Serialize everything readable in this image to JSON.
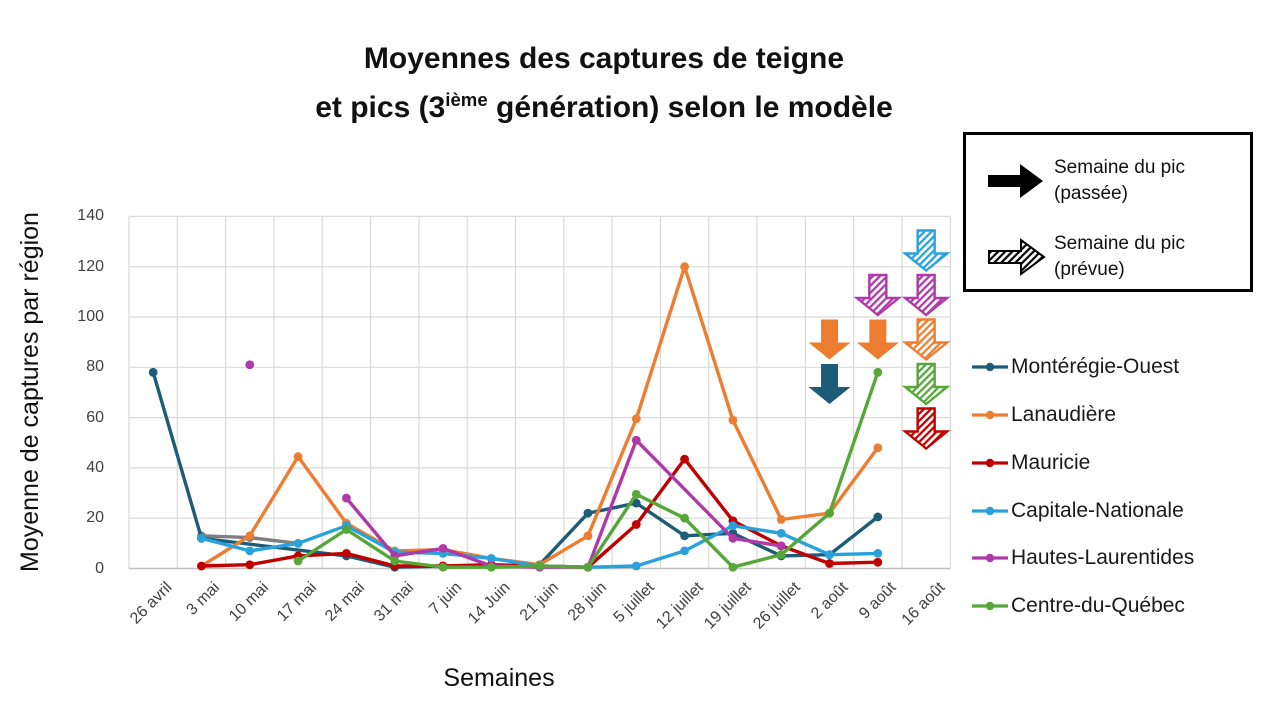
{
  "title": {
    "line1": "Moyennes des captures de teigne",
    "line2_pre": "et pics (3",
    "line2_sup": "ième",
    "line2_post": " génération) selon le modèle"
  },
  "axes": {
    "y_title": "Moyenne de captures par région",
    "x_title": "Semaines",
    "y_ticks": [
      0,
      20,
      40,
      60,
      80,
      100,
      120,
      140
    ]
  },
  "arrow_legend": {
    "items": [
      {
        "icon": "solid-black-right-arrow",
        "line1": "Semaine du pic",
        "line2": "(passée)"
      },
      {
        "icon": "hatched-black-right-arrow",
        "line1": "Semaine du pic",
        "line2": "(prévue)"
      }
    ]
  },
  "chart_data": {
    "type": "line",
    "title": "Moyennes des captures de teigne et pics (3ième génération) selon le modèle",
    "xlabel": "Semaines",
    "ylabel": "Moyenne de captures par région",
    "ylim": [
      0,
      140
    ],
    "grid": true,
    "legend_position": "right",
    "categories": [
      "26 avril",
      "3 mai",
      "10 mai",
      "17 mai",
      "24 mai",
      "31 mai",
      "7 juin",
      "14 Juin",
      "21 juin",
      "28 juin",
      "5 juillet",
      "12 juillet",
      "19 juillet",
      "26 juillet",
      "2 août",
      "9 août",
      "16 août"
    ],
    "series": [
      {
        "name": "",
        "color": "#7F7F7F",
        "in_legend": false,
        "segments": [
          [
            [
              1,
              13
            ],
            [
              2,
              12.3
            ],
            [
              3,
              10
            ]
          ]
        ]
      },
      {
        "name": "Montérégie-Ouest",
        "color": "#1D5C78",
        "in_legend": true,
        "segments": [
          [
            [
              0,
              78
            ],
            [
              1,
              12
            ],
            [
              4,
              5
            ],
            [
              5,
              0.5
            ],
            [
              6,
              1
            ],
            [
              7,
              1
            ],
            [
              8,
              1.5
            ],
            [
              9,
              22
            ],
            [
              10,
              26
            ],
            [
              11,
              13
            ],
            [
              12,
              14
            ],
            [
              13,
              5
            ],
            [
              14,
              5.5
            ],
            [
              15,
              20.5
            ]
          ]
        ]
      },
      {
        "name": "Lanaudière",
        "color": "#ED7D31",
        "in_legend": true,
        "segments": [
          [
            [
              1,
              1
            ],
            [
              2,
              13
            ],
            [
              3,
              44.5
            ],
            [
              4,
              18
            ],
            [
              5,
              7
            ],
            [
              6,
              7.5
            ],
            [
              7,
              4
            ],
            [
              8,
              1.5
            ],
            [
              9,
              13
            ],
            [
              10,
              59.5
            ],
            [
              11,
              120
            ],
            [
              12,
              59
            ],
            [
              13,
              19.5
            ],
            [
              14,
              22
            ],
            [
              15,
              48
            ]
          ]
        ]
      },
      {
        "name": "Mauricie",
        "color": "#C00000",
        "in_legend": true,
        "segments": [
          [
            [
              1,
              1
            ],
            [
              2,
              1.5
            ],
            [
              3,
              5
            ],
            [
              4,
              6
            ],
            [
              5,
              1
            ],
            [
              6,
              1
            ],
            [
              7,
              1.5
            ],
            [
              8,
              1
            ],
            [
              9,
              0.5
            ],
            [
              10,
              17.5
            ],
            [
              11,
              43.5
            ],
            [
              12,
              19
            ],
            [
              13,
              9
            ],
            [
              14,
              2
            ],
            [
              15,
              2.5
            ]
          ]
        ]
      },
      {
        "name": "Capitale-Nationale",
        "color": "#29A2DC",
        "in_legend": true,
        "segments": [
          [
            [
              1,
              12
            ],
            [
              2,
              7
            ],
            [
              3,
              10
            ],
            [
              4,
              17
            ],
            [
              5,
              6.5
            ],
            [
              6,
              6
            ],
            [
              7,
              4
            ],
            [
              8,
              1
            ],
            [
              9,
              0.5
            ],
            [
              10,
              1
            ],
            [
              11,
              7
            ],
            [
              12,
              17
            ],
            [
              13,
              14
            ],
            [
              14,
              5.5
            ],
            [
              15,
              6
            ]
          ]
        ]
      },
      {
        "name": "Hautes-Laurentides",
        "color": "#AF3AA7",
        "in_legend": true,
        "segments": [
          [
            [
              2,
              81
            ]
          ],
          [
            [
              4,
              28
            ],
            [
              5,
              5
            ],
            [
              6,
              8
            ],
            [
              7,
              1
            ],
            [
              8,
              0.5
            ],
            [
              9,
              0.5
            ],
            [
              10,
              51
            ],
            [
              12,
              12
            ],
            [
              13,
              9
            ]
          ]
        ]
      },
      {
        "name": "Centre-du-Québec",
        "color": "#56A737",
        "in_legend": true,
        "segments": [
          [
            [
              3,
              3
            ],
            [
              4,
              15.5
            ],
            [
              5,
              3
            ],
            [
              6,
              0.5
            ],
            [
              7,
              0.5
            ],
            [
              8,
              1
            ],
            [
              9,
              0.5
            ],
            [
              10,
              29.5
            ],
            [
              11,
              20
            ],
            [
              12,
              0.5
            ],
            [
              13,
              5.5
            ],
            [
              14,
              22
            ],
            [
              15,
              78
            ]
          ]
        ]
      }
    ],
    "peak_arrows": [
      {
        "category": "2 août",
        "row": 3,
        "color": "#ED7D31",
        "style": "solid"
      },
      {
        "category": "2 août",
        "row": 4,
        "color": "#1D5C78",
        "style": "solid"
      },
      {
        "category": "9 août",
        "row": 2,
        "color": "#AF3AA7",
        "style": "hatched"
      },
      {
        "category": "9 août",
        "row": 3,
        "color": "#ED7D31",
        "style": "solid"
      },
      {
        "category": "16 août",
        "row": 1,
        "color": "#29A2DC",
        "style": "hatched"
      },
      {
        "category": "16 août",
        "row": 2,
        "color": "#AF3AA7",
        "style": "hatched"
      },
      {
        "category": "16 août",
        "row": 3,
        "color": "#ED7D31",
        "style": "hatched"
      },
      {
        "category": "16 août",
        "row": 4,
        "color": "#56A737",
        "style": "hatched"
      },
      {
        "category": "16 août",
        "row": 5,
        "color": "#C00000",
        "style": "hatched"
      }
    ]
  }
}
